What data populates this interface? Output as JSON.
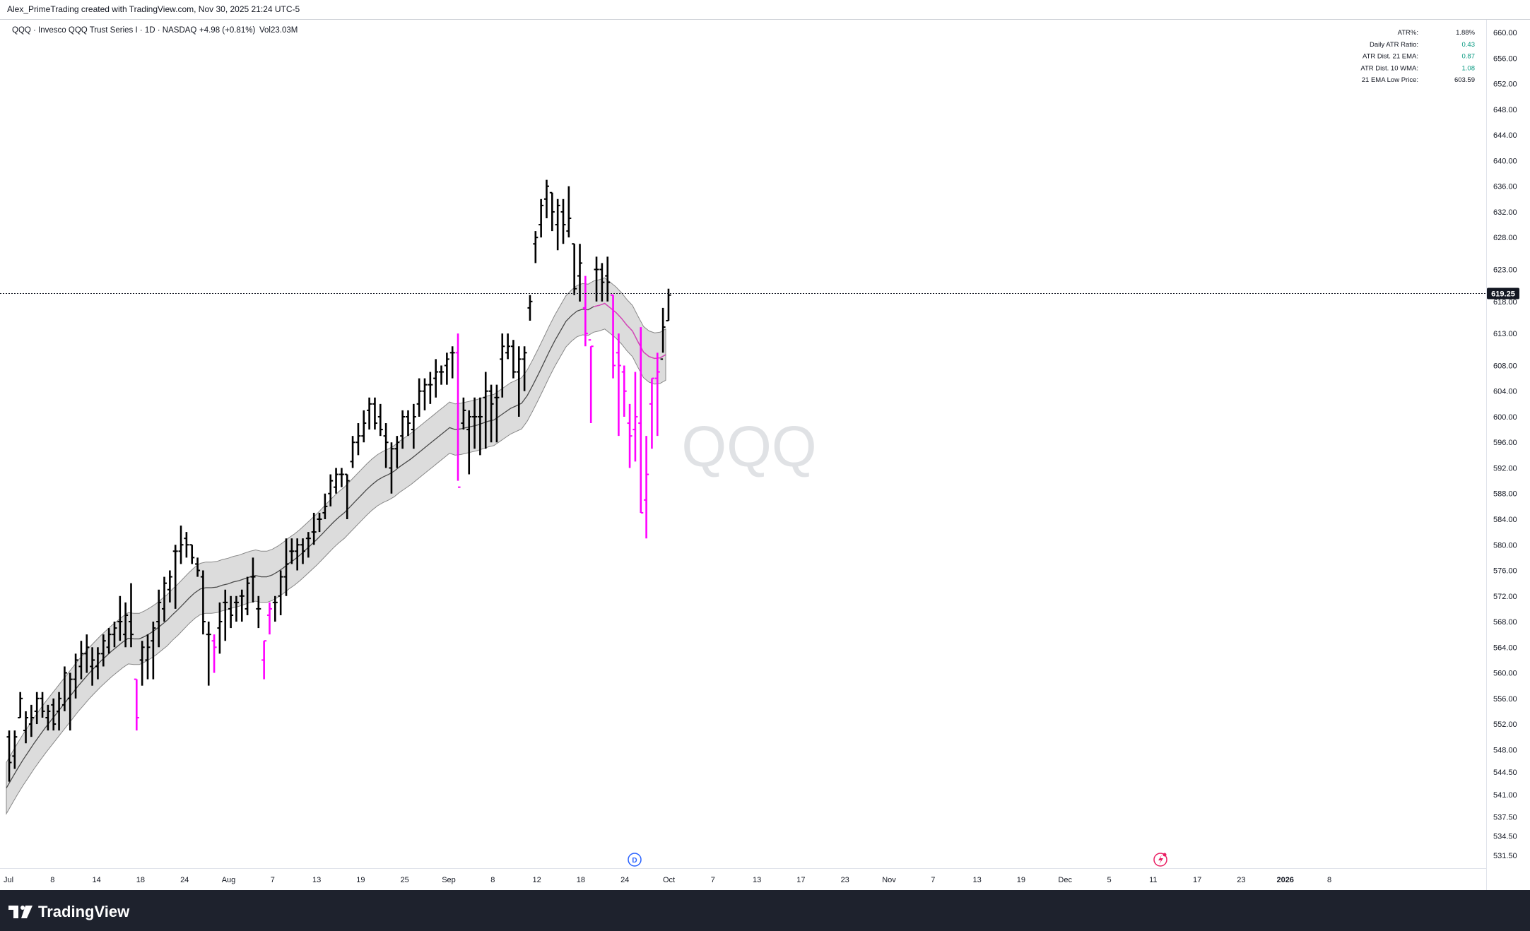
{
  "header": {
    "attribution": "Alex_PrimeTrading created with TradingView.com, Nov 30, 2025 21:24 UTC-5"
  },
  "legend": {
    "symbol_line": "QQQ · Invesco QQQ Trust Series I · 1D · NASDAQ",
    "change": "+4.98 (+0.81%)",
    "volume": "Vol23.03M"
  },
  "watermark": "QQQ",
  "stats_table": [
    {
      "label": "ATR%:",
      "value": "1.88%",
      "color": "#131722"
    },
    {
      "label": "Daily ATR Ratio:",
      "value": "0.43",
      "color": "#089981"
    },
    {
      "label": "ATR Dist. 21 EMA:",
      "value": "0.87",
      "color": "#089981"
    },
    {
      "label": "ATR Dist. 10 WMA:",
      "value": "1.08",
      "color": "#089981"
    },
    {
      "label": "21 EMA Low Price:",
      "value": "603.59",
      "color": "#131722"
    }
  ],
  "footer": {
    "brand": "TradingView"
  },
  "markers": {
    "dividend": "D"
  },
  "colors": {
    "up_bar": "#000000",
    "below_ema_bar": "#ff00ff",
    "band": "#d6d6d6",
    "ema": "#555555",
    "last_price_bg": "#131722"
  },
  "chart_data": {
    "type": "ohlc",
    "symbol": "QQQ",
    "last_price": "619.25",
    "ylim": [
      529.5,
      662
    ],
    "y_ticks": [
      "660.00",
      "656.00",
      "652.00",
      "648.00",
      "644.00",
      "640.00",
      "636.00",
      "632.00",
      "628.00",
      "623.00",
      "618.00",
      "613.00",
      "608.00",
      "604.00",
      "600.00",
      "596.00",
      "592.00",
      "588.00",
      "584.00",
      "580.00",
      "576.00",
      "572.00",
      "568.00",
      "564.00",
      "560.00",
      "556.00",
      "552.00",
      "548.00",
      "544.50",
      "541.00",
      "537.50",
      "534.50",
      "531.50"
    ],
    "x_ticks": [
      "Jul",
      "8",
      "14",
      "18",
      "24",
      "Aug",
      "7",
      "13",
      "19",
      "25",
      "Sep",
      "8",
      "12",
      "18",
      "24",
      "Oct",
      "7",
      "13",
      "17",
      "23",
      "Nov",
      "7",
      "13",
      "19",
      "Dec",
      "5",
      "11",
      "17",
      "23",
      "2026",
      "8"
    ],
    "bars": [
      {
        "o": 550,
        "h": 551,
        "l": 543,
        "c": 546,
        "below": false
      },
      {
        "o": 547,
        "h": 551,
        "l": 545,
        "c": 550,
        "below": false
      },
      {
        "o": 553,
        "h": 557,
        "l": 553,
        "c": 556,
        "below": false
      },
      {
        "o": 551,
        "h": 554,
        "l": 549,
        "c": 553,
        "below": false
      },
      {
        "o": 552,
        "h": 555,
        "l": 550,
        "c": 553,
        "below": false
      },
      {
        "o": 554,
        "h": 557,
        "l": 552,
        "c": 556,
        "below": false
      },
      {
        "o": 556,
        "h": 557,
        "l": 553,
        "c": 554,
        "below": false
      },
      {
        "o": 553,
        "h": 555,
        "l": 551,
        "c": 554,
        "below": false
      },
      {
        "o": 555,
        "h": 556,
        "l": 551,
        "c": 552,
        "below": false
      },
      {
        "o": 554,
        "h": 557,
        "l": 551,
        "c": 556,
        "below": false
      },
      {
        "o": 555,
        "h": 561,
        "l": 554,
        "c": 560,
        "below": false
      },
      {
        "o": 556,
        "h": 560,
        "l": 551,
        "c": 559,
        "below": false
      },
      {
        "o": 559,
        "h": 563,
        "l": 556,
        "c": 562,
        "below": false
      },
      {
        "o": 561,
        "h": 565,
        "l": 559,
        "c": 563,
        "below": false
      },
      {
        "o": 563,
        "h": 566,
        "l": 560,
        "c": 564,
        "below": false
      },
      {
        "o": 561,
        "h": 564,
        "l": 558,
        "c": 562,
        "below": false
      },
      {
        "o": 561,
        "h": 564,
        "l": 559,
        "c": 563,
        "below": false
      },
      {
        "o": 563,
        "h": 566,
        "l": 561,
        "c": 565,
        "below": false
      },
      {
        "o": 564,
        "h": 567,
        "l": 563,
        "c": 566,
        "below": false
      },
      {
        "o": 566,
        "h": 568,
        "l": 564,
        "c": 567,
        "below": false
      },
      {
        "o": 568,
        "h": 572,
        "l": 565,
        "c": 568,
        "below": false
      },
      {
        "o": 566,
        "h": 571,
        "l": 564,
        "c": 569,
        "below": false
      },
      {
        "o": 568,
        "h": 574,
        "l": 564,
        "c": 566,
        "below": false
      },
      {
        "o": 559,
        "h": 559,
        "l": 551,
        "c": 553,
        "below": true
      },
      {
        "o": 562,
        "h": 565,
        "l": 558,
        "c": 564,
        "below": false
      },
      {
        "o": 562,
        "h": 566,
        "l": 559,
        "c": 564,
        "below": false
      },
      {
        "o": 565,
        "h": 568,
        "l": 559,
        "c": 567,
        "below": false
      },
      {
        "o": 568,
        "h": 573,
        "l": 564,
        "c": 571,
        "below": false
      },
      {
        "o": 570,
        "h": 575,
        "l": 568,
        "c": 574,
        "below": false
      },
      {
        "o": 573,
        "h": 576,
        "l": 571,
        "c": 575,
        "below": false
      },
      {
        "o": 579,
        "h": 580,
        "l": 570,
        "c": 579,
        "below": false
      },
      {
        "o": 579,
        "h": 583,
        "l": 577,
        "c": 580,
        "below": false
      },
      {
        "o": 581,
        "h": 582,
        "l": 578,
        "c": 580,
        "below": false
      },
      {
        "o": 580,
        "h": 580,
        "l": 577,
        "c": 578,
        "below": false
      },
      {
        "o": 577,
        "h": 578,
        "l": 575,
        "c": 576,
        "below": false
      },
      {
        "o": 575,
        "h": 576,
        "l": 566,
        "c": 568,
        "below": false
      },
      {
        "o": 566,
        "h": 568,
        "l": 558,
        "c": 566,
        "below": false
      },
      {
        "o": 565,
        "h": 566,
        "l": 560,
        "c": 564,
        "below": true
      },
      {
        "o": 567,
        "h": 571,
        "l": 563,
        "c": 568,
        "below": false
      },
      {
        "o": 571,
        "h": 573,
        "l": 565,
        "c": 571,
        "below": false
      },
      {
        "o": 570,
        "h": 572,
        "l": 567,
        "c": 569,
        "below": false
      },
      {
        "o": 571,
        "h": 572,
        "l": 568,
        "c": 571,
        "below": false
      },
      {
        "o": 572,
        "h": 573,
        "l": 568,
        "c": 572,
        "below": false
      },
      {
        "o": 570,
        "h": 575,
        "l": 569,
        "c": 574,
        "below": false
      },
      {
        "o": 575,
        "h": 578,
        "l": 571,
        "c": 575,
        "below": false
      },
      {
        "o": 570,
        "h": 572,
        "l": 567,
        "c": 570,
        "below": false
      },
      {
        "o": 562,
        "h": 565,
        "l": 559,
        "c": 565,
        "below": true
      },
      {
        "o": 569,
        "h": 571,
        "l": 566,
        "c": 570,
        "below": true
      },
      {
        "o": 571,
        "h": 572,
        "l": 568,
        "c": 571,
        "below": false
      },
      {
        "o": 572,
        "h": 576,
        "l": 569,
        "c": 575,
        "below": false
      },
      {
        "o": 575,
        "h": 581,
        "l": 572,
        "c": 577,
        "below": false
      },
      {
        "o": 579,
        "h": 581,
        "l": 577,
        "c": 579,
        "below": false
      },
      {
        "o": 579,
        "h": 581,
        "l": 576,
        "c": 580,
        "below": false
      },
      {
        "o": 580,
        "h": 581,
        "l": 577,
        "c": 579,
        "below": false
      },
      {
        "o": 581,
        "h": 582,
        "l": 578,
        "c": 581,
        "below": false
      },
      {
        "o": 582,
        "h": 585,
        "l": 580,
        "c": 582,
        "below": false
      },
      {
        "o": 584,
        "h": 585,
        "l": 582,
        "c": 584,
        "below": false
      },
      {
        "o": 585,
        "h": 588,
        "l": 584,
        "c": 586,
        "below": false
      },
      {
        "o": 588,
        "h": 591,
        "l": 586,
        "c": 590,
        "below": false
      },
      {
        "o": 589,
        "h": 592,
        "l": 588,
        "c": 591,
        "below": false
      },
      {
        "o": 591,
        "h": 592,
        "l": 589,
        "c": 591,
        "below": false
      },
      {
        "o": 591,
        "h": 591,
        "l": 584,
        "c": 590,
        "below": false
      },
      {
        "o": 593,
        "h": 597,
        "l": 592,
        "c": 596,
        "below": false
      },
      {
        "o": 596,
        "h": 599,
        "l": 594,
        "c": 597,
        "below": false
      },
      {
        "o": 597,
        "h": 601,
        "l": 596,
        "c": 599,
        "below": false
      },
      {
        "o": 601,
        "h": 603,
        "l": 598,
        "c": 602,
        "below": false
      },
      {
        "o": 602,
        "h": 603,
        "l": 598,
        "c": 599,
        "below": false
      },
      {
        "o": 600,
        "h": 602,
        "l": 597,
        "c": 598,
        "below": false
      },
      {
        "o": 597,
        "h": 599,
        "l": 592,
        "c": 596,
        "below": false
      },
      {
        "o": 592,
        "h": 596,
        "l": 588,
        "c": 595,
        "below": false
      },
      {
        "o": 595,
        "h": 597,
        "l": 592,
        "c": 596,
        "below": false
      },
      {
        "o": 597,
        "h": 601,
        "l": 595,
        "c": 600,
        "below": false
      },
      {
        "o": 600,
        "h": 601,
        "l": 597,
        "c": 599,
        "below": false
      },
      {
        "o": 598,
        "h": 602,
        "l": 595,
        "c": 600,
        "below": false
      },
      {
        "o": 602,
        "h": 606,
        "l": 600,
        "c": 604,
        "below": false
      },
      {
        "o": 604,
        "h": 606,
        "l": 601,
        "c": 605,
        "below": false
      },
      {
        "o": 605,
        "h": 607,
        "l": 602,
        "c": 605,
        "below": false
      },
      {
        "o": 606,
        "h": 609,
        "l": 603,
        "c": 607,
        "below": false
      },
      {
        "o": 607,
        "h": 608,
        "l": 605,
        "c": 607,
        "below": false
      },
      {
        "o": 608,
        "h": 610,
        "l": 605,
        "c": 609,
        "below": false
      },
      {
        "o": 610,
        "h": 611,
        "l": 606,
        "c": 610,
        "below": false
      },
      {
        "o": 610,
        "h": 613,
        "l": 590,
        "c": 589,
        "below": true
      },
      {
        "o": 599,
        "h": 603,
        "l": 598,
        "c": 601,
        "below": false
      },
      {
        "o": 598,
        "h": 601,
        "l": 591,
        "c": 600,
        "below": false
      },
      {
        "o": 600,
        "h": 603,
        "l": 595,
        "c": 600,
        "below": false
      },
      {
        "o": 600,
        "h": 603,
        "l": 594,
        "c": 600,
        "below": false
      },
      {
        "o": 603,
        "h": 607,
        "l": 595,
        "c": 604,
        "below": false
      },
      {
        "o": 604,
        "h": 605,
        "l": 596,
        "c": 602,
        "below": false
      },
      {
        "o": 603,
        "h": 605,
        "l": 596,
        "c": 603,
        "below": false
      },
      {
        "o": 609,
        "h": 613,
        "l": 603,
        "c": 611,
        "below": false
      },
      {
        "o": 610,
        "h": 613,
        "l": 609,
        "c": 611,
        "below": false
      },
      {
        "o": 611,
        "h": 612,
        "l": 606,
        "c": 607,
        "below": false
      },
      {
        "o": 607,
        "h": 611,
        "l": 600,
        "c": 609,
        "below": false
      },
      {
        "o": 609,
        "h": 611,
        "l": 604,
        "c": 610,
        "below": false
      },
      {
        "o": 617,
        "h": 619,
        "l": 615,
        "c": 618,
        "below": false
      },
      {
        "o": 627,
        "h": 629,
        "l": 624,
        "c": 628,
        "below": false
      },
      {
        "o": 630,
        "h": 634,
        "l": 628,
        "c": 633,
        "below": false
      },
      {
        "o": 634,
        "h": 637,
        "l": 631,
        "c": 636,
        "below": false
      },
      {
        "o": 635,
        "h": 635,
        "l": 629,
        "c": 632,
        "below": false
      },
      {
        "o": 630,
        "h": 634,
        "l": 626,
        "c": 633,
        "below": false
      },
      {
        "o": 632,
        "h": 634,
        "l": 627,
        "c": 630,
        "below": false
      },
      {
        "o": 629,
        "h": 636,
        "l": 628,
        "c": 631,
        "below": false
      },
      {
        "o": 627,
        "h": 627,
        "l": 619,
        "c": 620,
        "below": false
      },
      {
        "o": 622,
        "h": 627,
        "l": 618,
        "c": 624,
        "below": false
      },
      {
        "o": 617,
        "h": 622,
        "l": 611,
        "c": 613,
        "below": true
      },
      {
        "o": 612,
        "h": 611,
        "l": 599,
        "c": 611,
        "below": true
      },
      {
        "o": 623,
        "h": 625,
        "l": 618,
        "c": 623,
        "below": false
      },
      {
        "o": 623,
        "h": 624,
        "l": 618,
        "c": 621,
        "below": false
      },
      {
        "o": 622,
        "h": 625,
        "l": 618,
        "c": 621,
        "below": false
      },
      {
        "o": 619,
        "h": 619,
        "l": 606,
        "c": 608,
        "below": true
      },
      {
        "o": 610,
        "h": 613,
        "l": 597,
        "c": 608,
        "below": true
      },
      {
        "o": 607,
        "h": 608,
        "l": 600,
        "c": 604,
        "below": true
      },
      {
        "o": 599,
        "h": 602,
        "l": 592,
        "c": 597,
        "below": true
      },
      {
        "o": 598,
        "h": 607,
        "l": 593,
        "c": 600,
        "below": true
      },
      {
        "o": 599,
        "h": 614,
        "l": 585,
        "c": 585,
        "below": true
      },
      {
        "o": 587,
        "h": 597,
        "l": 581,
        "c": 591,
        "below": true
      },
      {
        "o": 602,
        "h": 606,
        "l": 595,
        "c": 606,
        "below": true
      },
      {
        "o": 606,
        "h": 610,
        "l": 597,
        "c": 607,
        "below": true
      },
      {
        "o": 609,
        "h": 617,
        "l": 610,
        "c": 614,
        "below": false
      },
      {
        "o": 615,
        "h": 620,
        "l": 615,
        "c": 619,
        "below": false
      }
    ],
    "ema": [
      542.0,
      543.5,
      545.0,
      546.4,
      547.7,
      549.0,
      550.2,
      551.4,
      552.5,
      553.6,
      554.7,
      555.8,
      556.9,
      558.0,
      559.0,
      560.0,
      560.9,
      561.8,
      562.6,
      563.4,
      564.1,
      564.8,
      565.4,
      565.3,
      565.3,
      565.7,
      566.2,
      566.8,
      567.5,
      568.2,
      569.1,
      569.9,
      570.8,
      571.7,
      572.5,
      573.1,
      573.3,
      573.3,
      573.4,
      573.7,
      573.9,
      574.2,
      574.4,
      574.7,
      575.0,
      575.2,
      575.0,
      575.0,
      575.3,
      575.8,
      576.4,
      577.1,
      577.7,
      578.4,
      579.2,
      580.0,
      580.8,
      581.7,
      582.6,
      583.5,
      584.3,
      585.0,
      585.9,
      586.8,
      587.7,
      588.6,
      589.4,
      590.1,
      590.6,
      591.0,
      591.5,
      592.2,
      592.8,
      593.4,
      594.1,
      594.8,
      595.5,
      596.2,
      596.9,
      597.6,
      598.3,
      598.0,
      598.1,
      598.3,
      598.5,
      598.7,
      599.0,
      599.3,
      599.5,
      600.1,
      600.7,
      601.3,
      601.7,
      602.1,
      603.3,
      604.9,
      606.6,
      608.4,
      610.2,
      611.9,
      613.4,
      614.9,
      615.8,
      616.5,
      616.8,
      616.7,
      617.2,
      617.4,
      617.7,
      617.0,
      616.3,
      615.4,
      614.3,
      613.4,
      611.7,
      610.1,
      609.4,
      609.1,
      609.2,
      609.7
    ],
    "band_offset": 4.0
  }
}
